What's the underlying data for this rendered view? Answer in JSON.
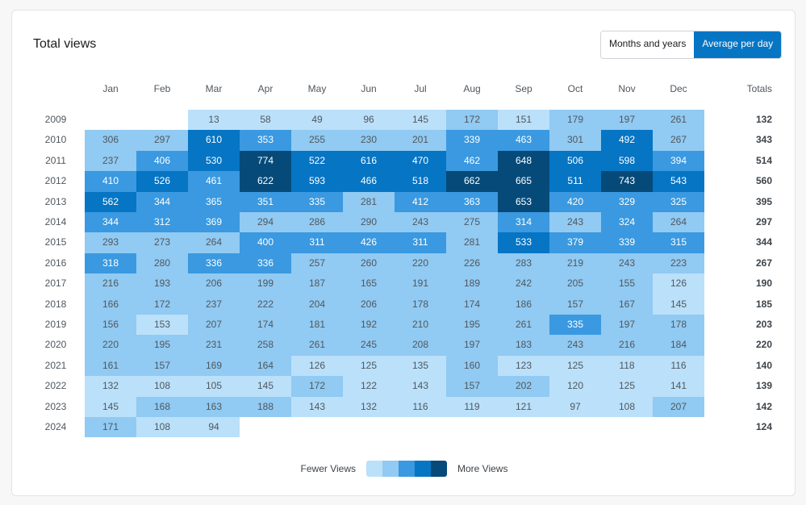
{
  "header": {
    "title": "Total views",
    "toggle": [
      {
        "label": "Months and years",
        "active": false
      },
      {
        "label": "Average per day",
        "active": true
      }
    ]
  },
  "colors": [
    "#bbe0fa",
    "#91caf2",
    "#3a99e0",
    "#0675c4",
    "#064a79"
  ],
  "legend": {
    "fewer": "Fewer Views",
    "more": "More Views"
  },
  "chart_data": {
    "type": "heatmap",
    "title": "Total views",
    "xlabel": "",
    "ylabel": "",
    "months": [
      "Jan",
      "Feb",
      "Mar",
      "Apr",
      "May",
      "Jun",
      "Jul",
      "Aug",
      "Sep",
      "Oct",
      "Nov",
      "Dec"
    ],
    "totals_label": "Totals",
    "rows": [
      {
        "year": "2009",
        "values": [
          null,
          null,
          13,
          58,
          49,
          96,
          145,
          172,
          151,
          179,
          197,
          261
        ],
        "levels": [
          0,
          0,
          1,
          1,
          1,
          1,
          1,
          2,
          1,
          2,
          2,
          2
        ],
        "total": 132
      },
      {
        "year": "2010",
        "values": [
          306,
          297,
          610,
          353,
          255,
          230,
          201,
          339,
          463,
          301,
          492,
          267
        ],
        "levels": [
          2,
          2,
          4,
          3,
          2,
          2,
          2,
          3,
          3,
          2,
          4,
          2
        ],
        "total": 343
      },
      {
        "year": "2011",
        "values": [
          237,
          406,
          530,
          774,
          522,
          616,
          470,
          462,
          648,
          506,
          598,
          394
        ],
        "levels": [
          2,
          3,
          4,
          5,
          4,
          4,
          4,
          3,
          5,
          4,
          4,
          3
        ],
        "total": 514
      },
      {
        "year": "2012",
        "values": [
          410,
          526,
          461,
          622,
          593,
          466,
          518,
          662,
          665,
          511,
          743,
          543
        ],
        "levels": [
          3,
          4,
          3,
          5,
          4,
          4,
          4,
          5,
          5,
          4,
          5,
          4
        ],
        "total": 560
      },
      {
        "year": "2013",
        "values": [
          562,
          344,
          365,
          351,
          335,
          281,
          412,
          363,
          653,
          420,
          329,
          325
        ],
        "levels": [
          4,
          3,
          3,
          3,
          3,
          2,
          3,
          3,
          5,
          3,
          3,
          3
        ],
        "total": 395
      },
      {
        "year": "2014",
        "values": [
          344,
          312,
          369,
          294,
          286,
          290,
          243,
          275,
          314,
          243,
          324,
          264
        ],
        "levels": [
          3,
          3,
          3,
          2,
          2,
          2,
          2,
          2,
          3,
          2,
          3,
          2
        ],
        "total": 297
      },
      {
        "year": "2015",
        "values": [
          293,
          273,
          264,
          400,
          311,
          426,
          311,
          281,
          533,
          379,
          339,
          315
        ],
        "levels": [
          2,
          2,
          2,
          3,
          3,
          3,
          3,
          2,
          4,
          3,
          3,
          3
        ],
        "total": 344
      },
      {
        "year": "2016",
        "values": [
          318,
          280,
          336,
          336,
          257,
          260,
          220,
          226,
          283,
          219,
          243,
          223
        ],
        "levels": [
          3,
          2,
          3,
          3,
          2,
          2,
          2,
          2,
          2,
          2,
          2,
          2
        ],
        "total": 267
      },
      {
        "year": "2017",
        "values": [
          216,
          193,
          206,
          199,
          187,
          165,
          191,
          189,
          242,
          205,
          155,
          126
        ],
        "levels": [
          2,
          2,
          2,
          2,
          2,
          2,
          2,
          2,
          2,
          2,
          2,
          1
        ],
        "total": 190
      },
      {
        "year": "2018",
        "values": [
          166,
          172,
          237,
          222,
          204,
          206,
          178,
          174,
          186,
          157,
          167,
          145
        ],
        "levels": [
          2,
          2,
          2,
          2,
          2,
          2,
          2,
          2,
          2,
          2,
          2,
          1
        ],
        "total": 185
      },
      {
        "year": "2019",
        "values": [
          156,
          153,
          207,
          174,
          181,
          192,
          210,
          195,
          261,
          335,
          197,
          178
        ],
        "levels": [
          2,
          1,
          2,
          2,
          2,
          2,
          2,
          2,
          2,
          3,
          2,
          2
        ],
        "total": 203
      },
      {
        "year": "2020",
        "values": [
          220,
          195,
          231,
          258,
          261,
          245,
          208,
          197,
          183,
          243,
          216,
          184
        ],
        "levels": [
          2,
          2,
          2,
          2,
          2,
          2,
          2,
          2,
          2,
          2,
          2,
          2
        ],
        "total": 220
      },
      {
        "year": "2021",
        "values": [
          161,
          157,
          169,
          164,
          126,
          125,
          135,
          160,
          123,
          125,
          118,
          116
        ],
        "levels": [
          2,
          2,
          2,
          2,
          1,
          1,
          1,
          2,
          1,
          1,
          1,
          1
        ],
        "total": 140
      },
      {
        "year": "2022",
        "values": [
          132,
          108,
          105,
          145,
          172,
          122,
          143,
          157,
          202,
          120,
          125,
          141
        ],
        "levels": [
          1,
          1,
          1,
          1,
          2,
          1,
          1,
          2,
          2,
          1,
          1,
          1
        ],
        "total": 139
      },
      {
        "year": "2023",
        "values": [
          145,
          168,
          163,
          188,
          143,
          132,
          116,
          119,
          121,
          97,
          108,
          207
        ],
        "levels": [
          1,
          2,
          2,
          2,
          1,
          1,
          1,
          1,
          1,
          1,
          1,
          2
        ],
        "total": 142
      },
      {
        "year": "2024",
        "values": [
          171,
          108,
          94,
          null,
          null,
          null,
          null,
          null,
          null,
          null,
          null,
          null
        ],
        "levels": [
          2,
          1,
          1,
          0,
          0,
          0,
          0,
          0,
          0,
          0,
          0,
          0
        ],
        "total": 124
      }
    ],
    "legend": [
      "Fewer Views",
      "More Views"
    ]
  }
}
